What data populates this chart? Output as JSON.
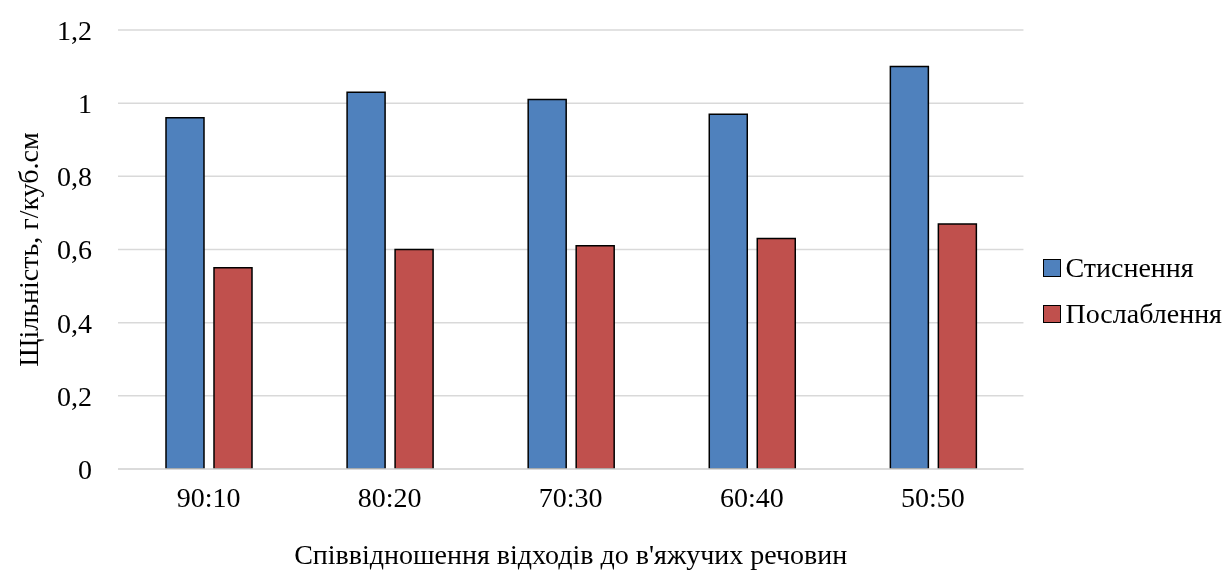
{
  "chart_data": {
    "type": "bar",
    "xlabel": "Співвідношення відходів до в'яжучих речовин",
    "ylabel": "Щільність, г/куб.см",
    "categories": [
      "90:10",
      "80:20",
      "70:30",
      "60:40",
      "50:50"
    ],
    "series": [
      {
        "name": "Стиснення",
        "color": "#4f81bd",
        "values": [
          0.96,
          1.03,
          1.01,
          0.97,
          1.1
        ]
      },
      {
        "name": "Послаблення",
        "color": "#c0504d",
        "values": [
          0.55,
          0.6,
          0.61,
          0.63,
          0.67
        ]
      }
    ],
    "ylim": [
      0,
      1.2
    ],
    "yticks": [
      0,
      {
        "value": 0.2,
        "label": "0,2"
      },
      {
        "value": 0.4,
        "label": "0,4"
      },
      {
        "value": 0.6,
        "label": "0,6"
      },
      {
        "value": 0.8,
        "label": "0,8"
      },
      1,
      {
        "value": 1.2,
        "label": "1,2"
      }
    ],
    "grid": "y",
    "legend": "right"
  }
}
